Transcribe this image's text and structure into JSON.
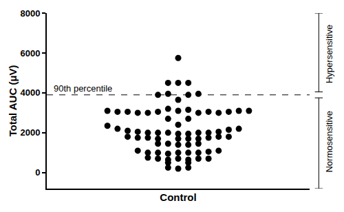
{
  "chart_data": {
    "type": "scatter",
    "x_label": "Control",
    "y_label": "Total AUC (μV)",
    "tick_labels": "y",
    "xlim": [
      -13,
      13
    ],
    "ylim": [
      -800,
      8000
    ],
    "yticks": [
      0,
      2000,
      4000,
      6000,
      8000
    ],
    "grid": false,
    "marker": "circle",
    "color": "#000000",
    "reference_line": {
      "value": 3900,
      "label": "90th percentile"
    },
    "bracket_labels": [
      "Hypersensitive",
      "Normosensitive"
    ],
    "x": [
      0,
      -1,
      0,
      1,
      -2,
      -1,
      1,
      2,
      0,
      -1,
      0,
      1,
      -7,
      -6,
      -5,
      -4,
      -3,
      -2,
      2,
      3,
      4,
      5,
      6,
      7,
      -1,
      1,
      0,
      -7,
      -6,
      -5,
      -4,
      -3,
      -2,
      -1,
      0,
      1,
      2,
      3,
      4,
      5,
      6,
      -5,
      -4,
      -3,
      -2,
      0,
      1,
      2,
      3,
      4,
      5,
      -2,
      -1,
      0,
      1,
      2,
      -4,
      -3,
      -2,
      -1,
      0,
      1,
      2,
      3,
      4,
      -3,
      -2,
      -1,
      0,
      1,
      2,
      3,
      -1,
      1,
      -1,
      0,
      1
    ],
    "values": [
      5750,
      4500,
      4500,
      4500,
      3900,
      3950,
      3900,
      3950,
      3650,
      3200,
      3100,
      3150,
      3100,
      3050,
      3050,
      3000,
      3000,
      3050,
      3000,
      3050,
      3000,
      3050,
      3100,
      3100,
      2700,
      2700,
      2400,
      2350,
      2200,
      2100,
      2050,
      2000,
      2000,
      2000,
      1950,
      1950,
      2000,
      2000,
      2050,
      2150,
      2200,
      1800,
      1750,
      1750,
      1700,
      1700,
      1700,
      1700,
      1750,
      1800,
      1800,
      1450,
      1450,
      1400,
      1400,
      1450,
      1100,
      1000,
      1000,
      950,
      1000,
      1000,
      1000,
      1050,
      1100,
      750,
      700,
      650,
      700,
      650,
      700,
      700,
      500,
      500,
      250,
      200,
      250
    ]
  }
}
